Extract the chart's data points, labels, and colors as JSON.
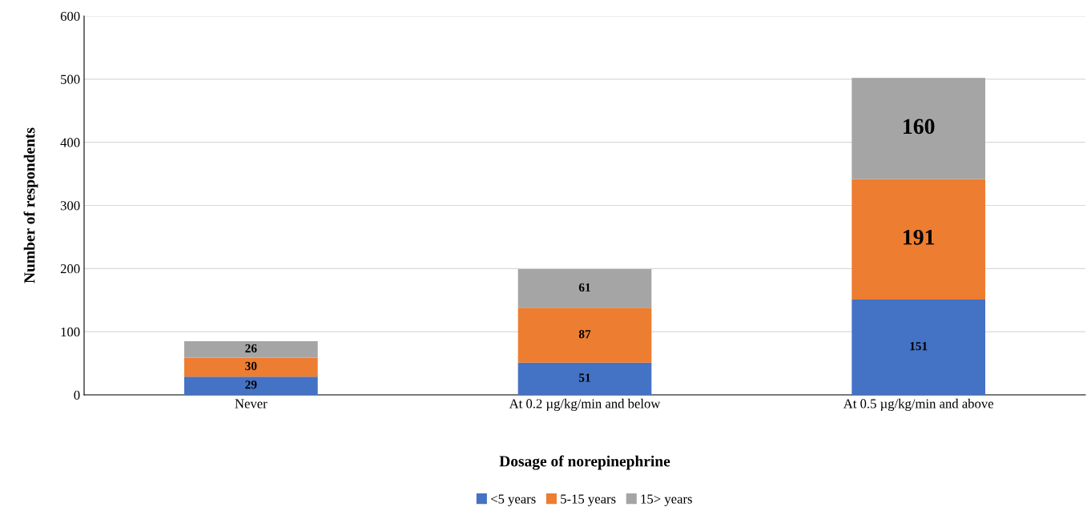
{
  "chart_data": {
    "type": "bar",
    "stacked": true,
    "xlabel": "Dosage of norepinephrine",
    "ylabel": "Number of respondents",
    "categories": [
      "Never",
      "At 0.2 µg/kg/min and below",
      "At 0.5 µg/kg/min and above"
    ],
    "series": [
      {
        "name": "<5 years",
        "color": "#4472c4",
        "values": [
          29,
          51,
          151
        ]
      },
      {
        "name": "5-15 years",
        "color": "#ed7d31",
        "values": [
          30,
          87,
          191
        ]
      },
      {
        "name": "15> years",
        "color": "#a5a5a5",
        "values": [
          26,
          61,
          160
        ]
      }
    ],
    "ylim": [
      0,
      600
    ],
    "yticks": [
      0,
      100,
      200,
      300,
      400,
      500,
      600
    ],
    "grid": "y",
    "legend": "bottom",
    "data_labels": true
  }
}
